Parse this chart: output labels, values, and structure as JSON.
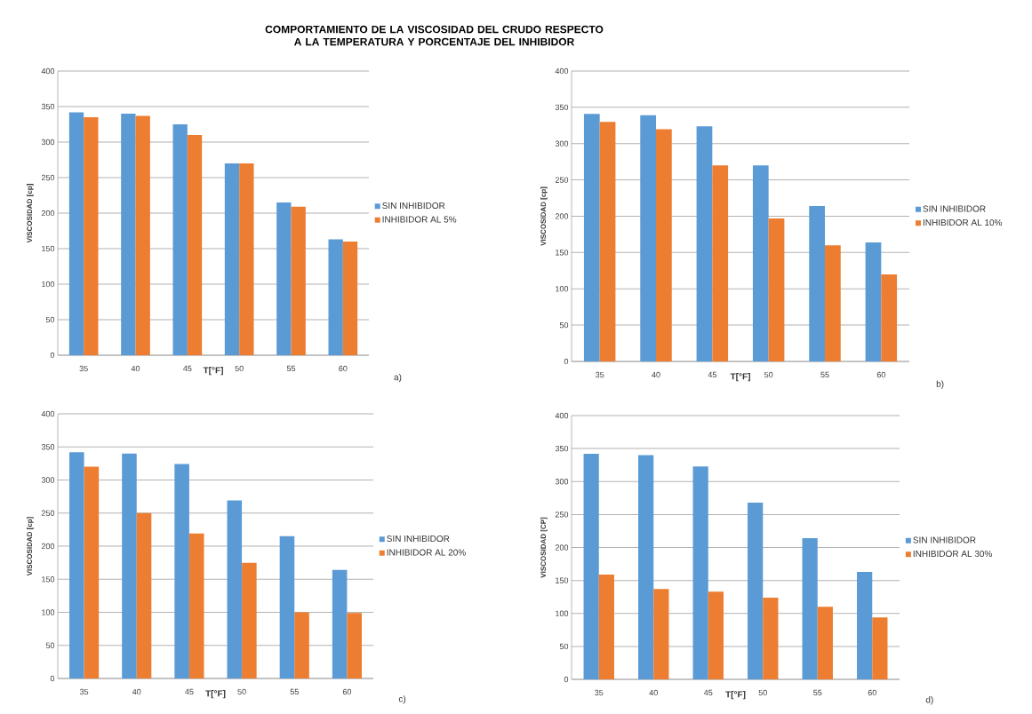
{
  "chart_data": [
    {
      "type": "bar",
      "title": "COMPORTAMIENTO DE LA VISCOSIDAD DEL CRUDO RESPECTO A LA TEMPERATURA Y PORCENTAJE DEL INHIBIDOR",
      "categories": [
        "35",
        "40",
        "45",
        "50",
        "55",
        "60"
      ],
      "xlabel": "T[°F]",
      "ylabel": "VISCOSIDAD [cp]",
      "ylim": [
        0,
        400
      ],
      "yticks": [
        0,
        50,
        100,
        150,
        200,
        250,
        300,
        350,
        400
      ],
      "grid": "y",
      "legend": "right",
      "annotations": [
        "a)"
      ],
      "series": [
        {
          "name": "SIN INHIBIDOR",
          "color": "#5b9bd5",
          "values": [
            342,
            340,
            325,
            270,
            215,
            163
          ]
        },
        {
          "name": "INHIBIDOR AL 5%",
          "color": "#ed7d31",
          "values": [
            335,
            337,
            310,
            270,
            209,
            160
          ]
        }
      ]
    },
    {
      "type": "bar",
      "categories": [
        "35",
        "40",
        "45",
        "50",
        "55",
        "60"
      ],
      "xlabel": "T[°F]",
      "ylabel": "VISCOSIDAD [cp]",
      "ylim": [
        0,
        400
      ],
      "yticks": [
        0,
        50,
        100,
        150,
        200,
        250,
        300,
        350,
        400
      ],
      "grid": "y",
      "legend": "right",
      "annotations": [
        "b)"
      ],
      "series": [
        {
          "name": "SIN INHIBIDOR",
          "color": "#5b9bd5",
          "values": [
            341,
            339,
            324,
            270,
            214,
            164
          ]
        },
        {
          "name": "INHIBIDOR AL 10%",
          "color": "#ed7d31",
          "values": [
            330,
            320,
            270,
            197,
            160,
            120
          ]
        }
      ]
    },
    {
      "type": "bar",
      "categories": [
        "35",
        "40",
        "45",
        "50",
        "55",
        "60"
      ],
      "xlabel": "T[°F]",
      "ylabel": "VISCOSIDAD [cp]",
      "ylim": [
        0,
        400
      ],
      "yticks": [
        0,
        50,
        100,
        150,
        200,
        250,
        300,
        350,
        400
      ],
      "grid": "y",
      "legend": "right",
      "annotations": [
        "c)"
      ],
      "series": [
        {
          "name": "SIN INHIBIDOR",
          "color": "#5b9bd5",
          "values": [
            342,
            340,
            324,
            269,
            215,
            164
          ]
        },
        {
          "name": "INHIBIDOR AL 20%",
          "color": "#ed7d31",
          "values": [
            320,
            250,
            219,
            175,
            100,
            99
          ]
        }
      ]
    },
    {
      "type": "bar",
      "categories": [
        "35",
        "40",
        "45",
        "50",
        "55",
        "60"
      ],
      "xlabel": "T[°F]",
      "ylabel": "VISCOSIDAD [CP]",
      "ylim": [
        0,
        400
      ],
      "yticks": [
        0,
        50,
        100,
        150,
        200,
        250,
        300,
        350,
        400
      ],
      "grid": "y",
      "legend": "right",
      "annotations": [
        "d)"
      ],
      "series": [
        {
          "name": "SIN INHIBIDOR",
          "color": "#5b9bd5",
          "values": [
            342,
            340,
            323,
            268,
            214,
            163
          ]
        },
        {
          "name": "INHIBIDOR AL 30%",
          "color": "#ed7d31",
          "values": [
            159,
            137,
            133,
            124,
            110,
            94
          ]
        }
      ]
    }
  ]
}
